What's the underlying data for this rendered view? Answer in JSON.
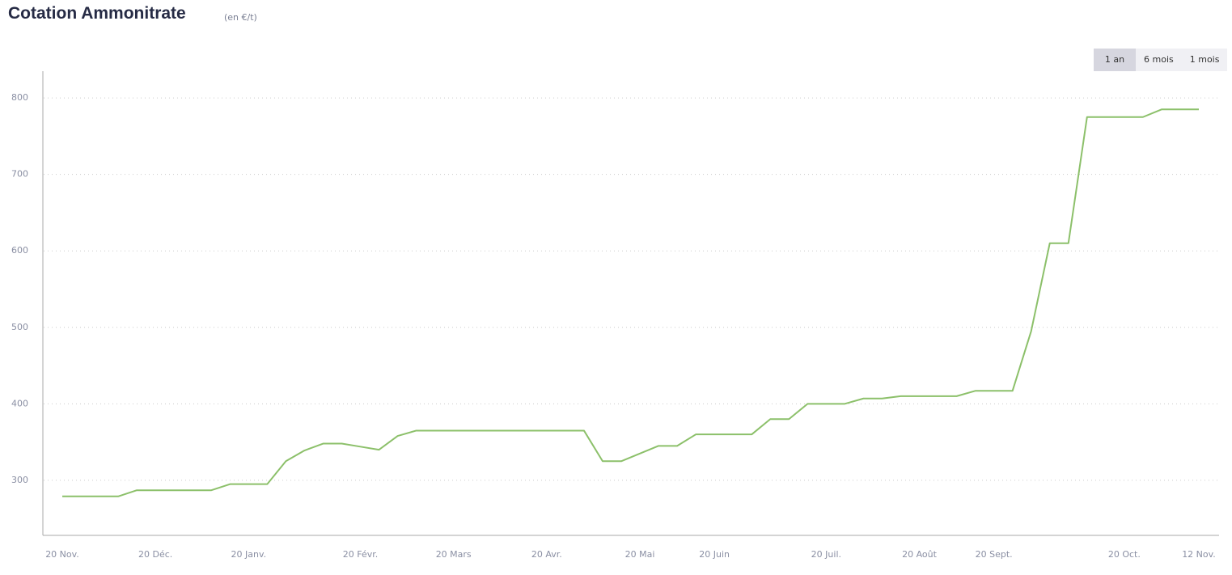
{
  "chart_data": {
    "type": "line",
    "title": "Cotation Ammonitrate",
    "subtitle": "(en €/t)",
    "categories": [
      "20 Nov.",
      null,
      null,
      null,
      null,
      "20 Déc.",
      null,
      null,
      null,
      null,
      "20 Janv.",
      null,
      null,
      null,
      null,
      null,
      "20 Févr.",
      null,
      null,
      null,
      null,
      "20 Mars",
      null,
      null,
      null,
      null,
      "20 Avr.",
      null,
      null,
      null,
      null,
      "20 Mai",
      null,
      null,
      null,
      "20 Juin",
      null,
      null,
      null,
      null,
      null,
      "20 Juil.",
      null,
      null,
      null,
      null,
      "20 Août",
      null,
      null,
      null,
      "20 Sept.",
      null,
      null,
      null,
      null,
      null,
      null,
      "20 Oct.",
      null,
      null,
      null,
      "12 Nov."
    ],
    "series": [
      {
        "color": "#8cc06a",
        "values": [
          279,
          279,
          279,
          279,
          287,
          287,
          287,
          287,
          287,
          295,
          295,
          295,
          325,
          339,
          348,
          348,
          344,
          340,
          358,
          365,
          365,
          365,
          365,
          365,
          365,
          365,
          365,
          365,
          365,
          325,
          325,
          335,
          345,
          345,
          360,
          360,
          360,
          360,
          380,
          380,
          400,
          400,
          400,
          407,
          407,
          410,
          410,
          410,
          410,
          417,
          417,
          417,
          495,
          610,
          610,
          775,
          775,
          775,
          775,
          785,
          785,
          785
        ]
      }
    ],
    "ylim": [
      228,
      835
    ],
    "yticks": [
      300,
      400,
      500,
      600,
      700,
      800
    ],
    "grid": true
  },
  "range_buttons": [
    "1 an",
    "6 mois",
    "1 mois"
  ]
}
